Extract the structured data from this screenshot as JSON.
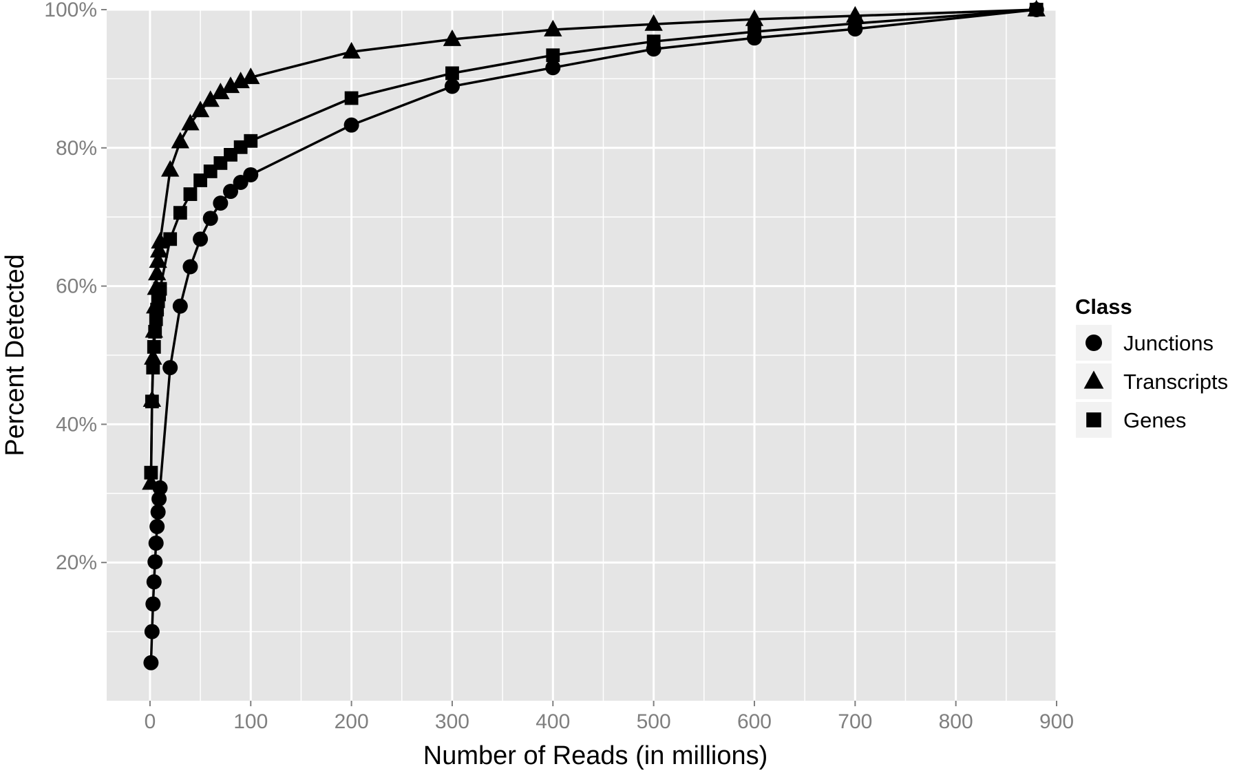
{
  "chart_data": {
    "type": "line",
    "title": "",
    "xlabel": "Number of Reads (in millions)",
    "ylabel": "Percent Detected",
    "xlim": [
      -43,
      900
    ],
    "ylim": [
      0.0,
      100.0
    ],
    "x_ticks": [
      0,
      100,
      200,
      300,
      400,
      500,
      600,
      700,
      800,
      900
    ],
    "y_ticks": [
      20,
      40,
      60,
      80,
      100
    ],
    "y_tick_labels": [
      "20%",
      "40%",
      "60%",
      "80%",
      "100%"
    ],
    "grid": true,
    "legend": {
      "title": "Class",
      "position": "right"
    },
    "colors": {
      "panel": "#e5e5e5",
      "grid": "#ffffff",
      "marks": "#000000",
      "ticks": "#7f7f7f"
    },
    "series": [
      {
        "name": "Junctions",
        "marker": "circle",
        "x": [
          1,
          2,
          3,
          4,
          5,
          6,
          7,
          8,
          9,
          10,
          20,
          30,
          40,
          50,
          60,
          70,
          80,
          90,
          100,
          200,
          300,
          400,
          500,
          600,
          700,
          880
        ],
        "y": [
          5.5,
          10.0,
          14.0,
          17.2,
          20.1,
          22.8,
          25.2,
          27.3,
          29.2,
          30.8,
          48.2,
          57.1,
          62.8,
          66.8,
          69.8,
          72.0,
          73.7,
          75.0,
          76.1,
          83.3,
          88.9,
          91.6,
          94.3,
          95.9,
          97.2,
          100.0
        ]
      },
      {
        "name": "Transcripts",
        "marker": "triangle",
        "x": [
          1,
          2,
          3,
          4,
          5,
          6,
          7,
          8,
          9,
          10,
          20,
          30,
          40,
          50,
          60,
          70,
          80,
          90,
          100,
          200,
          300,
          400,
          500,
          600,
          700,
          880
        ],
        "y": [
          31.5,
          43.5,
          49.6,
          53.5,
          57.0,
          59.7,
          61.8,
          63.6,
          65.1,
          66.4,
          76.8,
          80.9,
          83.5,
          85.4,
          86.9,
          88.0,
          88.9,
          89.6,
          90.2,
          93.9,
          95.7,
          97.1,
          97.9,
          98.6,
          99.1,
          100.0
        ]
      },
      {
        "name": "Genes",
        "marker": "square",
        "x": [
          1,
          2,
          3,
          4,
          5,
          6,
          7,
          8,
          9,
          10,
          20,
          30,
          40,
          50,
          60,
          70,
          80,
          90,
          100,
          200,
          300,
          400,
          500,
          600,
          700,
          880
        ],
        "y": [
          33.0,
          43.3,
          48.2,
          51.2,
          53.4,
          55.2,
          56.6,
          57.8,
          58.8,
          59.6,
          66.8,
          70.6,
          73.3,
          75.3,
          76.6,
          77.8,
          79.0,
          80.1,
          81.0,
          87.2,
          90.8,
          93.4,
          95.4,
          96.8,
          98.0,
          100.0
        ]
      }
    ]
  }
}
